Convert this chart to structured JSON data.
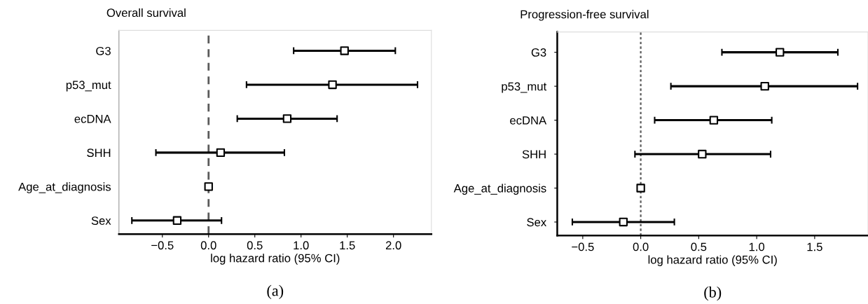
{
  "chart_data": [
    {
      "type": "scatter",
      "orientation": "horizontal",
      "title": "Overall survival",
      "xlabel": "log hazard ratio (95% CI)",
      "categories": [
        "G3",
        "p53_mut",
        "ecDNA",
        "SHH",
        "Age_at_diagnosis",
        "Sex"
      ],
      "series": [
        {
          "color": "#000000",
          "values": [
            1.47,
            1.34,
            0.85,
            0.13,
            0,
            -0.34
          ],
          "errors": [
            [
              0.92,
              2.02
            ],
            [
              0.41,
              2.26
            ],
            [
              0.31,
              1.39
            ],
            [
              -0.57,
              0.82
            ],
            null,
            [
              -0.83,
              0.14
            ]
          ]
        }
      ],
      "marker": "square",
      "xlim": [
        -0.97,
        2.41
      ],
      "xticks": [
        {
          "value": -0.5,
          "label": "−0.5"
        },
        {
          "value": 0,
          "label": "0.0"
        },
        {
          "value": 0.5,
          "label": "0.5"
        },
        {
          "value": 1,
          "label": "1.0"
        },
        {
          "value": 1.5,
          "label": "1.5"
        },
        {
          "value": 2,
          "label": "2.0"
        }
      ],
      "ref_lines": [
        {
          "axis": "x",
          "value": 0,
          "color": "#5a5a5a",
          "line_style": "dashed"
        }
      ],
      "annotations": [
        "(a)"
      ]
    },
    {
      "type": "scatter",
      "orientation": "horizontal",
      "title": "Progression-free survival",
      "xlabel": "log hazard ratio (95% CI)",
      "categories": [
        "G3",
        "p53_mut",
        "ecDNA",
        "SHH",
        "Age_at_diagnosis",
        "Sex"
      ],
      "series": [
        {
          "color": "#000000",
          "values": [
            1.2,
            1.07,
            0.63,
            0.53,
            0,
            -0.15
          ],
          "errors": [
            [
              0.7,
              1.7
            ],
            [
              0.26,
              1.87
            ],
            [
              0.12,
              1.13
            ],
            [
              -0.05,
              1.12
            ],
            null,
            [
              -0.59,
              0.29
            ]
          ]
        }
      ],
      "marker": "square",
      "xlim": [
        -0.72,
        1.96
      ],
      "xticks": [
        {
          "value": -0.5,
          "label": "−0.5"
        },
        {
          "value": 0,
          "label": "0.0"
        },
        {
          "value": 0.5,
          "label": "0.5"
        },
        {
          "value": 1,
          "label": "1.0"
        },
        {
          "value": 1.5,
          "label": "1.5"
        }
      ],
      "ref_lines": [
        {
          "axis": "x",
          "value": 0,
          "color": "#5a5a5a",
          "line_style": "dotted"
        }
      ],
      "annotations": [
        "(b)"
      ]
    }
  ]
}
